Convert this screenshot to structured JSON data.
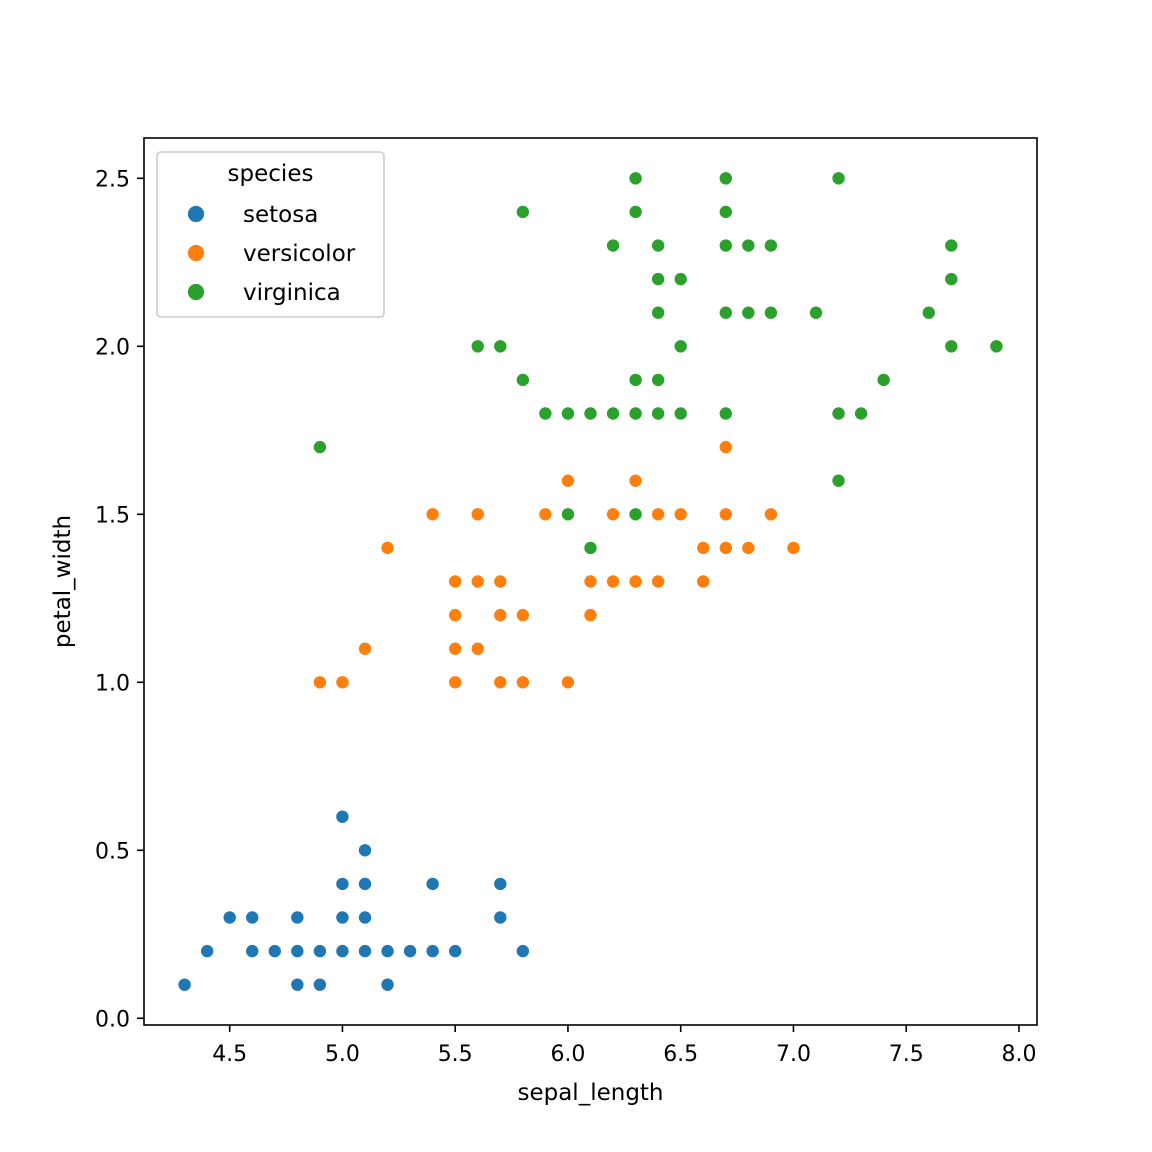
{
  "chart_data": {
    "type": "scatter",
    "title": "",
    "xlabel": "sepal_length",
    "ylabel": "petal_width",
    "xlim": [
      4.12,
      8.08
    ],
    "ylim": [
      -0.02,
      2.62
    ],
    "x_ticks": [
      4.5,
      5.0,
      5.5,
      6.0,
      6.5,
      7.0,
      7.5,
      8.0
    ],
    "x_tick_labels": [
      "4.5",
      "5.0",
      "5.5",
      "6.0",
      "6.5",
      "7.0",
      "7.5",
      "8.0"
    ],
    "y_ticks": [
      0.0,
      0.5,
      1.0,
      1.5,
      2.0,
      2.5
    ],
    "y_tick_labels": [
      "0.0",
      "0.5",
      "1.0",
      "1.5",
      "2.0",
      "2.5"
    ],
    "grid": false,
    "legend": {
      "title": "species",
      "placement": "top-left"
    },
    "series": [
      {
        "name": "setosa",
        "color": "#1f77b4",
        "points": [
          [
            4.3,
            0.1
          ],
          [
            4.4,
            0.2
          ],
          [
            4.5,
            0.3
          ],
          [
            4.6,
            0.3
          ],
          [
            4.6,
            0.2
          ],
          [
            4.7,
            0.2
          ],
          [
            4.8,
            0.3
          ],
          [
            4.8,
            0.2
          ],
          [
            4.8,
            0.1
          ],
          [
            4.9,
            0.2
          ],
          [
            4.9,
            0.1
          ],
          [
            5.0,
            0.6
          ],
          [
            5.0,
            0.4
          ],
          [
            5.0,
            0.3
          ],
          [
            5.0,
            0.2
          ],
          [
            5.1,
            0.5
          ],
          [
            5.1,
            0.4
          ],
          [
            5.1,
            0.3
          ],
          [
            5.1,
            0.2
          ],
          [
            5.2,
            0.2
          ],
          [
            5.2,
            0.1
          ],
          [
            5.3,
            0.2
          ],
          [
            5.4,
            0.4
          ],
          [
            5.4,
            0.2
          ],
          [
            5.5,
            0.2
          ],
          [
            5.7,
            0.4
          ],
          [
            5.7,
            0.3
          ],
          [
            5.8,
            0.2
          ]
        ]
      },
      {
        "name": "versicolor",
        "color": "#ff7f0e",
        "points": [
          [
            4.9,
            1.0
          ],
          [
            5.0,
            1.0
          ],
          [
            5.1,
            1.1
          ],
          [
            5.2,
            1.4
          ],
          [
            5.4,
            1.5
          ],
          [
            5.5,
            1.3
          ],
          [
            5.5,
            1.2
          ],
          [
            5.5,
            1.1
          ],
          [
            5.5,
            1.0
          ],
          [
            5.6,
            1.5
          ],
          [
            5.6,
            1.3
          ],
          [
            5.6,
            1.1
          ],
          [
            5.7,
            1.3
          ],
          [
            5.7,
            1.2
          ],
          [
            5.7,
            1.0
          ],
          [
            5.8,
            1.2
          ],
          [
            5.8,
            1.0
          ],
          [
            5.9,
            1.5
          ],
          [
            6.0,
            1.6
          ],
          [
            6.0,
            1.0
          ],
          [
            6.1,
            1.3
          ],
          [
            6.1,
            1.2
          ],
          [
            6.2,
            1.5
          ],
          [
            6.2,
            1.3
          ],
          [
            6.3,
            1.6
          ],
          [
            6.3,
            1.3
          ],
          [
            6.4,
            1.5
          ],
          [
            6.4,
            1.3
          ],
          [
            6.5,
            1.5
          ],
          [
            6.6,
            1.4
          ],
          [
            6.6,
            1.3
          ],
          [
            6.7,
            1.7
          ],
          [
            6.7,
            1.5
          ],
          [
            6.7,
            1.4
          ],
          [
            6.8,
            1.4
          ],
          [
            6.9,
            1.5
          ],
          [
            7.0,
            1.4
          ]
        ]
      },
      {
        "name": "virginica",
        "color": "#2ca02c",
        "points": [
          [
            4.9,
            1.7
          ],
          [
            5.6,
            2.0
          ],
          [
            5.7,
            2.0
          ],
          [
            5.8,
            2.4
          ],
          [
            5.8,
            1.9
          ],
          [
            5.9,
            1.8
          ],
          [
            6.0,
            1.8
          ],
          [
            6.0,
            1.5
          ],
          [
            6.1,
            1.8
          ],
          [
            6.1,
            1.4
          ],
          [
            6.2,
            2.3
          ],
          [
            6.2,
            1.8
          ],
          [
            6.3,
            2.5
          ],
          [
            6.3,
            2.4
          ],
          [
            6.3,
            1.9
          ],
          [
            6.3,
            1.8
          ],
          [
            6.3,
            1.5
          ],
          [
            6.4,
            2.3
          ],
          [
            6.4,
            2.2
          ],
          [
            6.4,
            2.1
          ],
          [
            6.4,
            1.9
          ],
          [
            6.4,
            1.8
          ],
          [
            6.5,
            2.2
          ],
          [
            6.5,
            2.0
          ],
          [
            6.5,
            1.8
          ],
          [
            6.7,
            2.5
          ],
          [
            6.7,
            2.4
          ],
          [
            6.7,
            2.3
          ],
          [
            6.7,
            2.1
          ],
          [
            6.7,
            1.8
          ],
          [
            6.8,
            2.3
          ],
          [
            6.8,
            2.1
          ],
          [
            6.9,
            2.3
          ],
          [
            6.9,
            2.1
          ],
          [
            7.1,
            2.1
          ],
          [
            7.2,
            2.5
          ],
          [
            7.2,
            1.8
          ],
          [
            7.2,
            1.6
          ],
          [
            7.3,
            1.8
          ],
          [
            7.4,
            1.9
          ],
          [
            7.6,
            2.1
          ],
          [
            7.7,
            2.3
          ],
          [
            7.7,
            2.2
          ],
          [
            7.7,
            2.0
          ],
          [
            7.9,
            2.0
          ]
        ]
      }
    ]
  }
}
